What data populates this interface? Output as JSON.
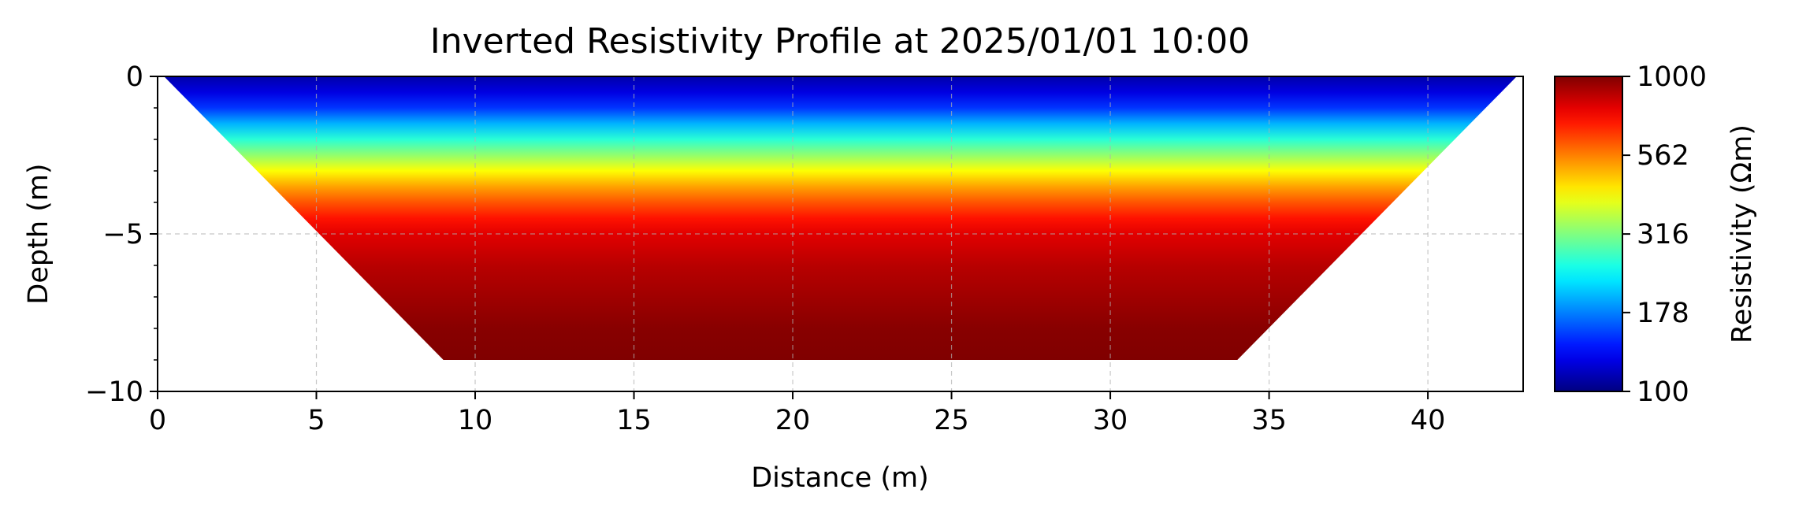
{
  "chart_data": {
    "type": "heatmap",
    "title": "Inverted Resistivity Profile at 2025/01/01 10:00",
    "xlabel": "Distance (m)",
    "ylabel": "Depth (m)",
    "colorbar_label": "Resistivity (Ωm)",
    "xlim": [
      0,
      43
    ],
    "ylim": [
      -10,
      0
    ],
    "x_ticks": [
      0,
      5,
      10,
      15,
      20,
      25,
      30,
      35,
      40
    ],
    "x_tick_labels": [
      "0",
      "5",
      "10",
      "15",
      "20",
      "25",
      "30",
      "35",
      "40"
    ],
    "y_ticks": [
      0,
      -5,
      -10
    ],
    "y_tick_labels": [
      "0",
      "−5",
      "−10"
    ],
    "colorbar_range": [
      100,
      1000
    ],
    "colorbar_scale": "log",
    "colorbar_ticks": [
      100,
      178,
      316,
      562,
      1000
    ],
    "colorbar_tick_labels": [
      "100",
      "178",
      "316",
      "562",
      "1000"
    ],
    "colormap": "jet",
    "grid": true,
    "section_outline": [
      [
        0.2,
        0
      ],
      [
        42.8,
        0
      ],
      [
        34,
        -9
      ],
      [
        9,
        -9
      ]
    ],
    "depth_profile": {
      "depth": [
        0,
        -0.5,
        -1,
        -1.5,
        -2,
        -2.5,
        -3,
        -3.5,
        -4,
        -4.5,
        -5,
        -6,
        -7,
        -8,
        -9
      ],
      "resistivity": [
        110,
        125,
        150,
        200,
        260,
        330,
        420,
        520,
        620,
        720,
        800,
        880,
        930,
        980,
        1000
      ]
    }
  }
}
